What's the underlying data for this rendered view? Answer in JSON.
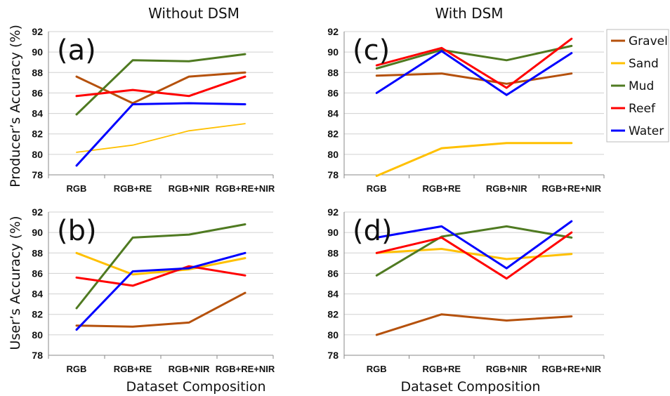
{
  "figure": {
    "left_column_title": "Without DSM",
    "right_column_title": "With DSM",
    "top_row_ylabel": "Producer’s Accuracy (%)",
    "bottom_row_ylabel": "User’s Accuracy (%)",
    "left_xlabel": "Dataset Composition",
    "right_xlabel": "Dataset Composition"
  },
  "legend": [
    {
      "name": "Gravel",
      "color": "#b5510c"
    },
    {
      "name": "Sand",
      "color": "#ffc000"
    },
    {
      "name": "Mud",
      "color": "#4f7a21"
    },
    {
      "name": "Reef",
      "color": "#ff0000"
    },
    {
      "name": "Water",
      "color": "#0000ff"
    }
  ],
  "chart_data": [
    {
      "type": "line",
      "panel_label": "(a)",
      "categories": [
        "RGB",
        "RGB+RE",
        "RGB+NIR",
        "RGB+RE+NIR"
      ],
      "ylim": [
        78,
        92
      ],
      "yticks": [
        "78",
        "80",
        "82",
        "84",
        "86",
        "88",
        "90",
        "92"
      ],
      "grid": true,
      "series": [
        {
          "name": "Gravel",
          "color": "#b5510c",
          "values": [
            87.6,
            85.0,
            87.6,
            88.0
          ]
        },
        {
          "name": "Sand",
          "color": "#ffc000",
          "values": [
            80.2,
            80.9,
            82.3,
            83.0
          ]
        },
        {
          "name": "Mud",
          "color": "#4f7a21",
          "values": [
            83.9,
            89.2,
            89.1,
            89.8
          ]
        },
        {
          "name": "Reef",
          "color": "#ff0000",
          "values": [
            85.7,
            86.3,
            85.7,
            87.6
          ]
        },
        {
          "name": "Water",
          "color": "#0000ff",
          "values": [
            78.9,
            84.9,
            85.0,
            84.9
          ]
        }
      ]
    },
    {
      "type": "line",
      "panel_label": "(b)",
      "categories": [
        "RGB",
        "RGB+RE",
        "RGB+NIR",
        "RGB+RE+NIR"
      ],
      "ylim": [
        78,
        92
      ],
      "yticks": [
        "78",
        "80",
        "82",
        "84",
        "86",
        "88",
        "90",
        "92"
      ],
      "grid": true,
      "series": [
        {
          "name": "Gravel",
          "color": "#b5510c",
          "values": [
            80.9,
            80.8,
            81.2,
            84.1
          ]
        },
        {
          "name": "Sand",
          "color": "#ffc000",
          "values": [
            88.0,
            85.9,
            86.4,
            87.5
          ]
        },
        {
          "name": "Mud",
          "color": "#4f7a21",
          "values": [
            82.6,
            89.5,
            89.8,
            90.8
          ]
        },
        {
          "name": "Reef",
          "color": "#ff0000",
          "values": [
            85.6,
            84.8,
            86.7,
            85.8
          ]
        },
        {
          "name": "Water",
          "color": "#0000ff",
          "values": [
            80.5,
            86.2,
            86.5,
            88.0
          ]
        }
      ]
    },
    {
      "type": "line",
      "panel_label": "(c)",
      "categories": [
        "RGB",
        "RGB+RE",
        "RGB+NIR",
        "RGB+RE+NIR"
      ],
      "ylim": [
        78,
        92
      ],
      "yticks": [
        "78",
        "80",
        "82",
        "84",
        "86",
        "88",
        "90",
        "92"
      ],
      "grid": true,
      "series": [
        {
          "name": "Gravel",
          "color": "#b5510c",
          "values": [
            87.7,
            87.9,
            86.9,
            87.9
          ]
        },
        {
          "name": "Sand",
          "color": "#ffc000",
          "values": [
            77.9,
            80.6,
            81.1,
            81.1
          ]
        },
        {
          "name": "Mud",
          "color": "#4f7a21",
          "values": [
            88.4,
            90.2,
            89.2,
            90.6
          ]
        },
        {
          "name": "Reef",
          "color": "#ff0000",
          "values": [
            88.7,
            90.4,
            86.5,
            91.3
          ]
        },
        {
          "name": "Water",
          "color": "#0000ff",
          "values": [
            86.0,
            90.1,
            85.8,
            89.9
          ]
        }
      ]
    },
    {
      "type": "line",
      "panel_label": "(d)",
      "categories": [
        "RGB",
        "RGB+RE",
        "RGB+NIR",
        "RGB+RE+NIR"
      ],
      "ylim": [
        78,
        92
      ],
      "yticks": [
        "78",
        "80",
        "82",
        "84",
        "86",
        "88",
        "90",
        "92"
      ],
      "grid": true,
      "series": [
        {
          "name": "Gravel",
          "color": "#b5510c",
          "values": [
            80.0,
            82.0,
            81.4,
            81.8
          ]
        },
        {
          "name": "Sand",
          "color": "#ffc000",
          "values": [
            88.0,
            88.4,
            87.4,
            87.9
          ]
        },
        {
          "name": "Mud",
          "color": "#4f7a21",
          "values": [
            85.8,
            89.6,
            90.6,
            89.5
          ]
        },
        {
          "name": "Reef",
          "color": "#ff0000",
          "values": [
            88.0,
            89.5,
            85.5,
            90.0
          ]
        },
        {
          "name": "Water",
          "color": "#0000ff",
          "values": [
            89.5,
            90.6,
            86.5,
            91.1
          ]
        }
      ]
    }
  ]
}
